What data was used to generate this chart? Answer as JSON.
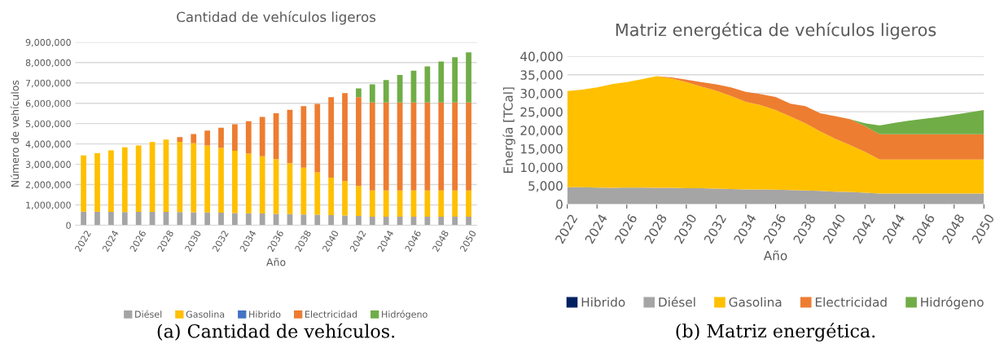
{
  "chart_data": [
    {
      "type": "bar",
      "stacked": true,
      "title": "Cantidad de vehículos ligeros",
      "xlabel": "Año",
      "ylabel": "Número de vehículos",
      "categories": [
        "2022",
        null,
        "2024",
        null,
        "2026",
        null,
        "2028",
        null,
        "2030",
        null,
        "2032",
        null,
        "2034",
        null,
        "2036",
        null,
        "2038",
        null,
        "2040",
        null,
        "2042",
        null,
        "2044",
        null,
        "2046",
        null,
        "2048",
        null,
        "2050"
      ],
      "series": [
        {
          "name": "Diésel",
          "color": "#a5a5a5",
          "values": [
            670000,
            670000,
            660000,
            650000,
            660000,
            660000,
            660000,
            650000,
            640000,
            630000,
            620000,
            600000,
            590000,
            580000,
            560000,
            550000,
            530000,
            520000,
            500000,
            480000,
            460000,
            420000,
            420000,
            420000,
            420000,
            420000,
            420000,
            420000,
            420000
          ]
        },
        {
          "name": "Gasolina",
          "color": "#ffc000",
          "values": [
            2760000,
            2870000,
            3030000,
            3190000,
            3270000,
            3440000,
            3560000,
            3460000,
            3400000,
            3300000,
            3190000,
            3070000,
            2930000,
            2810000,
            2690000,
            2500000,
            2300000,
            2080000,
            1840000,
            1690000,
            1470000,
            1290000,
            1290000,
            1290000,
            1290000,
            1290000,
            1290000,
            1290000,
            1290000
          ]
        },
        {
          "name": "Hibrido",
          "color": "#4472c4",
          "values": [
            null,
            null,
            null,
            null,
            null,
            null,
            null,
            null,
            null,
            null,
            null,
            null,
            null,
            null,
            null,
            null,
            null,
            null,
            null,
            null,
            null,
            null,
            null,
            null,
            null,
            null,
            null,
            null,
            null
          ]
        },
        {
          "name": "Electricidad",
          "color": "#ed7d31",
          "values": [
            0,
            0,
            0,
            0,
            0,
            0,
            0,
            230000,
            450000,
            730000,
            990000,
            1300000,
            1600000,
            1940000,
            2260000,
            2630000,
            3030000,
            3370000,
            3960000,
            4330000,
            4370000,
            4330000,
            4330000,
            4330000,
            4330000,
            4330000,
            4330000,
            4330000,
            4330000
          ]
        },
        {
          "name": "Hidrógeno",
          "color": "#70ad47",
          "values": [
            0,
            0,
            0,
            0,
            0,
            0,
            0,
            0,
            0,
            0,
            0,
            0,
            0,
            0,
            0,
            0,
            0,
            0,
            0,
            0,
            430000,
            890000,
            1100000,
            1350000,
            1560000,
            1770000,
            2010000,
            2220000,
            2460000
          ]
        }
      ],
      "ylim": [
        0,
        9000000
      ],
      "yticks": [
        0,
        {
          "value": 1000000,
          "label": "1,000,000"
        },
        {
          "value": 2000000,
          "label": "2,000,000"
        },
        {
          "value": 3000000,
          "label": "3,000,000"
        },
        {
          "value": 4000000,
          "label": "4,000,000"
        },
        {
          "value": 5000000,
          "label": "5,000,000"
        },
        {
          "value": 6000000,
          "label": "6,000,000"
        },
        {
          "value": 7000000,
          "label": "7,000,000"
        },
        {
          "value": 8000000,
          "label": "8,000,000"
        },
        {
          "value": 9000000,
          "label": "9,000,000"
        }
      ],
      "grid": "y",
      "legend": "bottom",
      "annotations": [
        "(a) Cantidad de vehículos."
      ]
    },
    {
      "type": "area",
      "stacked": true,
      "title": "Matriz energética de vehículos ligeros",
      "xlabel": "Año",
      "ylabel": "Energía [TCal]",
      "x": [
        2022,
        2023,
        2024,
        2025,
        2026,
        2027,
        2028,
        2029,
        2030,
        2031,
        2032,
        2033,
        2034,
        2035,
        2036,
        2037,
        2038,
        2039,
        2040,
        2041,
        2042,
        2043,
        2044,
        2045,
        2046,
        2047,
        2048,
        2049,
        2050
      ],
      "series": [
        {
          "name": "Hibrido",
          "color": "#002060",
          "values": [
            null,
            null,
            null,
            null,
            null,
            null,
            null,
            null,
            null,
            null,
            null,
            null,
            null,
            null,
            null,
            null,
            null,
            null,
            null,
            null,
            null,
            null,
            null,
            null,
            null,
            null,
            null,
            null,
            null
          ]
        },
        {
          "name": "Diésel",
          "color": "#a5a5a5",
          "values": [
            4600,
            4600,
            4500,
            4400,
            4500,
            4500,
            4400,
            4400,
            4300,
            4300,
            4200,
            4100,
            4000,
            4000,
            3900,
            3800,
            3700,
            3600,
            3400,
            3300,
            3100,
            2900,
            2900,
            2900,
            2900,
            2900,
            2900,
            2900,
            2900
          ]
        },
        {
          "name": "Gasolina",
          "color": "#ffc000",
          "values": [
            26000,
            26400,
            27100,
            28100,
            28500,
            29300,
            30200,
            29600,
            28700,
            27500,
            26500,
            25200,
            23700,
            22800,
            21600,
            19900,
            18200,
            16100,
            14300,
            12700,
            11100,
            9200,
            9200,
            9200,
            9200,
            9200,
            9200,
            9200,
            9200
          ]
        },
        {
          "name": "Electricidad",
          "color": "#ed7d31",
          "values": [
            0,
            0,
            0,
            0,
            0,
            0,
            0,
            300,
            700,
            1200,
            1700,
            2300,
            2700,
            3000,
            3500,
            3500,
            4600,
            4900,
            6100,
            7000,
            6900,
            6800,
            6800,
            6800,
            6800,
            6800,
            6800,
            6800,
            6800
          ]
        },
        {
          "name": "Hidrógeno",
          "color": "#70ad47",
          "values": [
            0,
            0,
            0,
            0,
            0,
            0,
            0,
            0,
            0,
            0,
            0,
            0,
            0,
            0,
            0,
            0,
            0,
            0,
            0,
            0,
            800,
            2400,
            3100,
            3700,
            4200,
            4700,
            5300,
            5900,
            6600
          ]
        }
      ],
      "xlim": [
        2022,
        2050
      ],
      "xticks": [
        2022,
        2024,
        2026,
        2028,
        2030,
        2032,
        2034,
        2036,
        2038,
        2040,
        2042,
        2044,
        2046,
        2048,
        2050
      ],
      "ylim": [
        0,
        40000
      ],
      "yticks": [
        0,
        {
          "value": 5000,
          "label": "5,000"
        },
        {
          "value": 10000,
          "label": "10,000"
        },
        {
          "value": 15000,
          "label": "15,000"
        },
        {
          "value": 20000,
          "label": "20,000"
        },
        {
          "value": 25000,
          "label": "25,000"
        },
        {
          "value": 30000,
          "label": "30,000"
        },
        {
          "value": 35000,
          "label": "35,000"
        },
        {
          "value": 40000,
          "label": "40,000"
        }
      ],
      "grid": "y",
      "legend": "bottom",
      "annotations": [
        "(b) Matriz energética."
      ]
    }
  ]
}
